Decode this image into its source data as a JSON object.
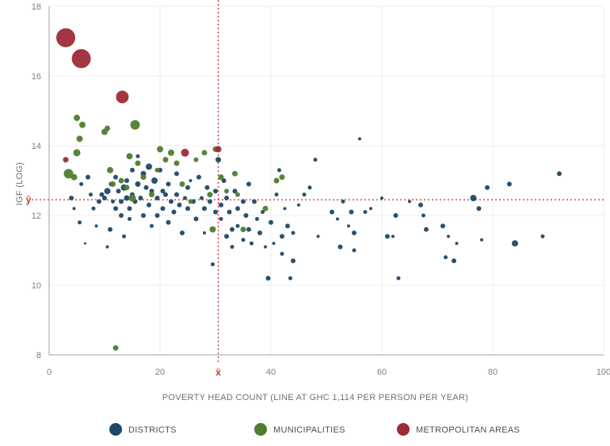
{
  "chart_data": {
    "type": "scatter",
    "xlabel": "POVERTY HEAD COUNT (LINE AT GHC 1,114 PER PERSON PER YEAR)",
    "ylabel": "IGF (LOG)",
    "xlim": [
      0,
      100
    ],
    "ylim": [
      8,
      18
    ],
    "x_ticks": [
      "0",
      "20",
      "40",
      "60",
      "80",
      "100"
    ],
    "y_ticks": [
      "8",
      "10",
      "12",
      "14",
      "16",
      "18"
    ],
    "grid": "horizontal and vertical, light",
    "legend_position": "bottom-center",
    "reference_lines": {
      "x_mean": {
        "value": 30.5,
        "label": "x̄"
      },
      "y_mean": {
        "value": 12.45,
        "label": "ȳ"
      }
    },
    "series": [
      {
        "name": "DISTRICTS",
        "color": "#1d4868",
        "points": [
          [
            4,
            12.5,
            3
          ],
          [
            4.5,
            12.2,
            2
          ],
          [
            5.5,
            11.8,
            2.5
          ],
          [
            5.8,
            12.9,
            2.5
          ],
          [
            6.5,
            11.2,
            1.5
          ],
          [
            7,
            13.1,
            3
          ],
          [
            7.5,
            12.6,
            2.5
          ],
          [
            8,
            12.2,
            2.5
          ],
          [
            8.5,
            11.7,
            2
          ],
          [
            9,
            12.4,
            3
          ],
          [
            9.5,
            12.6,
            3
          ],
          [
            10,
            12.5,
            3
          ],
          [
            10.5,
            12.7,
            4
          ],
          [
            10.5,
            11.1,
            2
          ],
          [
            11,
            11.6,
            3
          ],
          [
            11.2,
            12.9,
            3
          ],
          [
            11.5,
            12.4,
            2.5
          ],
          [
            12,
            12.2,
            3
          ],
          [
            12,
            13.1,
            3
          ],
          [
            12.5,
            12.7,
            3
          ],
          [
            13,
            12.0,
            3
          ],
          [
            13,
            12.4,
            3
          ],
          [
            13.5,
            12.8,
            4
          ],
          [
            13.5,
            11.4,
            2.5
          ],
          [
            14,
            13.0,
            3
          ],
          [
            14,
            12.5,
            3.5
          ],
          [
            14.5,
            12.2,
            3
          ],
          [
            14.5,
            11.9,
            2.5
          ],
          [
            15,
            13.3,
            3
          ],
          [
            15,
            12.6,
            3
          ],
          [
            15.5,
            12.4,
            3
          ],
          [
            16,
            13.7,
            2.5
          ],
          [
            16,
            12.9,
            3.5
          ],
          [
            16.5,
            12.5,
            3
          ],
          [
            17,
            13.2,
            3.5
          ],
          [
            17,
            12.0,
            3
          ],
          [
            17.5,
            12.8,
            3
          ],
          [
            18,
            13.4,
            4
          ],
          [
            18,
            12.3,
            3
          ],
          [
            18.5,
            12.7,
            3
          ],
          [
            18.5,
            11.7,
            2.5
          ],
          [
            19,
            13.0,
            4
          ],
          [
            19.5,
            12.5,
            3
          ],
          [
            19.5,
            12.0,
            3
          ],
          [
            20,
            13.3,
            3
          ],
          [
            20.5,
            12.7,
            3
          ],
          [
            20.5,
            12.2,
            3
          ],
          [
            21,
            12.6,
            3
          ],
          [
            21.5,
            12.9,
            3
          ],
          [
            21.5,
            11.8,
            3
          ],
          [
            22,
            12.4,
            3
          ],
          [
            22.5,
            12.1,
            3
          ],
          [
            23,
            12.6,
            3
          ],
          [
            23,
            13.2,
            3
          ],
          [
            23.5,
            12.3,
            3
          ],
          [
            24,
            11.5,
            3
          ],
          [
            24.5,
            12.5,
            2.5
          ],
          [
            25,
            12.2,
            3
          ],
          [
            25,
            12.8,
            3
          ],
          [
            25.5,
            13.0,
            2
          ],
          [
            26,
            12.4,
            3
          ],
          [
            26.5,
            11.9,
            3
          ],
          [
            27,
            13.1,
            3
          ],
          [
            27.5,
            12.5,
            2.5
          ],
          [
            28,
            12.2,
            3
          ],
          [
            28,
            11.5,
            2
          ],
          [
            28.5,
            12.8,
            3
          ],
          [
            29,
            12.4,
            3
          ],
          [
            29.5,
            10.6,
            2.5
          ],
          [
            30,
            12.7,
            3
          ],
          [
            30,
            12.1,
            3
          ],
          [
            30.5,
            13.6,
            3.5
          ],
          [
            31,
            12.3,
            3
          ],
          [
            31,
            11.9,
            2.5
          ],
          [
            31.5,
            13.0,
            3
          ],
          [
            32,
            12.5,
            3
          ],
          [
            32,
            11.4,
            3
          ],
          [
            32.5,
            12.1,
            3
          ],
          [
            33,
            11.6,
            3
          ],
          [
            33,
            11.1,
            2.5
          ],
          [
            33.5,
            12.7,
            3
          ],
          [
            34,
            12.2,
            3
          ],
          [
            34,
            11.7,
            2.5
          ],
          [
            35,
            12.4,
            3
          ],
          [
            35,
            11.3,
            2.5
          ],
          [
            35.5,
            12.0,
            3
          ],
          [
            36,
            12.9,
            3
          ],
          [
            36,
            11.6,
            3
          ],
          [
            36.5,
            11.2,
            2.5
          ],
          [
            37,
            12.4,
            3
          ],
          [
            37.5,
            11.9,
            2.5
          ],
          [
            38,
            11.5,
            3
          ],
          [
            38.5,
            12.1,
            2.5
          ],
          [
            39,
            11.1,
            2
          ],
          [
            39.5,
            10.2,
            3
          ],
          [
            40,
            11.8,
            3
          ],
          [
            40.5,
            11.2,
            2
          ],
          [
            41,
            12.6,
            2.5
          ],
          [
            41.5,
            13.3,
            2.5
          ],
          [
            42,
            11.4,
            3
          ],
          [
            42,
            10.9,
            2.5
          ],
          [
            42.5,
            12.2,
            2
          ],
          [
            43,
            11.7,
            3
          ],
          [
            43.5,
            10.2,
            2.5
          ],
          [
            44,
            11.5,
            2.5
          ],
          [
            44,
            10.7,
            3
          ],
          [
            45,
            12.3,
            2
          ],
          [
            46,
            12.6,
            2.5
          ],
          [
            47,
            12.8,
            2.5
          ],
          [
            48,
            13.6,
            2.5
          ],
          [
            48.5,
            11.4,
            2
          ],
          [
            51,
            12.1,
            3
          ],
          [
            52,
            11.9,
            2
          ],
          [
            52.5,
            11.1,
            3
          ],
          [
            53,
            12.4,
            2.5
          ],
          [
            54,
            11.7,
            2
          ],
          [
            54.5,
            12.1,
            3
          ],
          [
            55,
            11.5,
            3
          ],
          [
            55,
            11.0,
            2.5
          ],
          [
            56,
            14.2,
            2
          ],
          [
            57,
            12.1,
            2.5
          ],
          [
            58,
            12.2,
            2
          ],
          [
            60,
            12.5,
            2
          ],
          [
            61,
            11.4,
            3
          ],
          [
            62,
            11.4,
            2
          ],
          [
            62.5,
            12.0,
            3
          ],
          [
            63,
            10.2,
            2.5
          ],
          [
            65,
            12.4,
            2
          ],
          [
            67,
            12.3,
            3
          ],
          [
            67.5,
            12.0,
            2.5
          ],
          [
            68,
            11.6,
            3
          ],
          [
            71,
            11.7,
            3
          ],
          [
            71.5,
            10.8,
            2.5
          ],
          [
            72,
            11.4,
            2
          ],
          [
            73,
            10.7,
            3
          ],
          [
            73.5,
            11.2,
            2
          ],
          [
            76.5,
            12.5,
            4
          ],
          [
            77.5,
            12.2,
            3
          ],
          [
            78,
            11.3,
            2
          ],
          [
            79,
            12.8,
            3
          ],
          [
            83,
            12.9,
            3
          ],
          [
            84,
            11.2,
            4
          ],
          [
            89,
            11.4,
            2.5
          ],
          [
            92,
            13.2,
            3
          ]
        ]
      },
      {
        "name": "MUNICIPALITIES",
        "color": "#4e7d2e",
        "points": [
          [
            3.5,
            13.2,
            6
          ],
          [
            4.5,
            13.1,
            4
          ],
          [
            5,
            13.8,
            4.5
          ],
          [
            5,
            14.8,
            4
          ],
          [
            5.5,
            14.2,
            4
          ],
          [
            6,
            14.6,
            4
          ],
          [
            10,
            14.4,
            4
          ],
          [
            10.5,
            14.5,
            3.5
          ],
          [
            11,
            13.3,
            4
          ],
          [
            11.5,
            12.9,
            3.5
          ],
          [
            12,
            8.2,
            3.5
          ],
          [
            13,
            13.0,
            3.5
          ],
          [
            14,
            12.8,
            3.5
          ],
          [
            14.5,
            13.7,
            4
          ],
          [
            15,
            12.5,
            4.5
          ],
          [
            15.5,
            14.6,
            6
          ],
          [
            16,
            13.5,
            3.5
          ],
          [
            17,
            13.1,
            3.5
          ],
          [
            18.5,
            12.6,
            3.5
          ],
          [
            19.5,
            13.3,
            3
          ],
          [
            20,
            13.9,
            4
          ],
          [
            21,
            13.6,
            3.5
          ],
          [
            22,
            13.8,
            4
          ],
          [
            23,
            13.5,
            3.5
          ],
          [
            24,
            12.9,
            3.5
          ],
          [
            25.5,
            12.4,
            3
          ],
          [
            26.5,
            13.6,
            3
          ],
          [
            28,
            13.8,
            3.5
          ],
          [
            29,
            12.6,
            3.5
          ],
          [
            29.5,
            11.6,
            4
          ],
          [
            30,
            13.9,
            3.5
          ],
          [
            31,
            13.1,
            3.5
          ],
          [
            32,
            12.7,
            3
          ],
          [
            33.5,
            13.2,
            3.5
          ],
          [
            34,
            12.6,
            3
          ],
          [
            35,
            11.6,
            3.5
          ],
          [
            39,
            12.2,
            3.5
          ],
          [
            41,
            13.0,
            3.5
          ],
          [
            42,
            13.1,
            3.5
          ]
        ]
      },
      {
        "name": "METROPOLITAN AREAS",
        "color": "#9e2b38",
        "points": [
          [
            3,
            13.6,
            3.5
          ],
          [
            3,
            17.1,
            12
          ],
          [
            5.8,
            16.5,
            12
          ],
          [
            13.2,
            15.4,
            8
          ],
          [
            24.5,
            13.8,
            5
          ],
          [
            30.5,
            13.9,
            4
          ]
        ]
      }
    ]
  }
}
